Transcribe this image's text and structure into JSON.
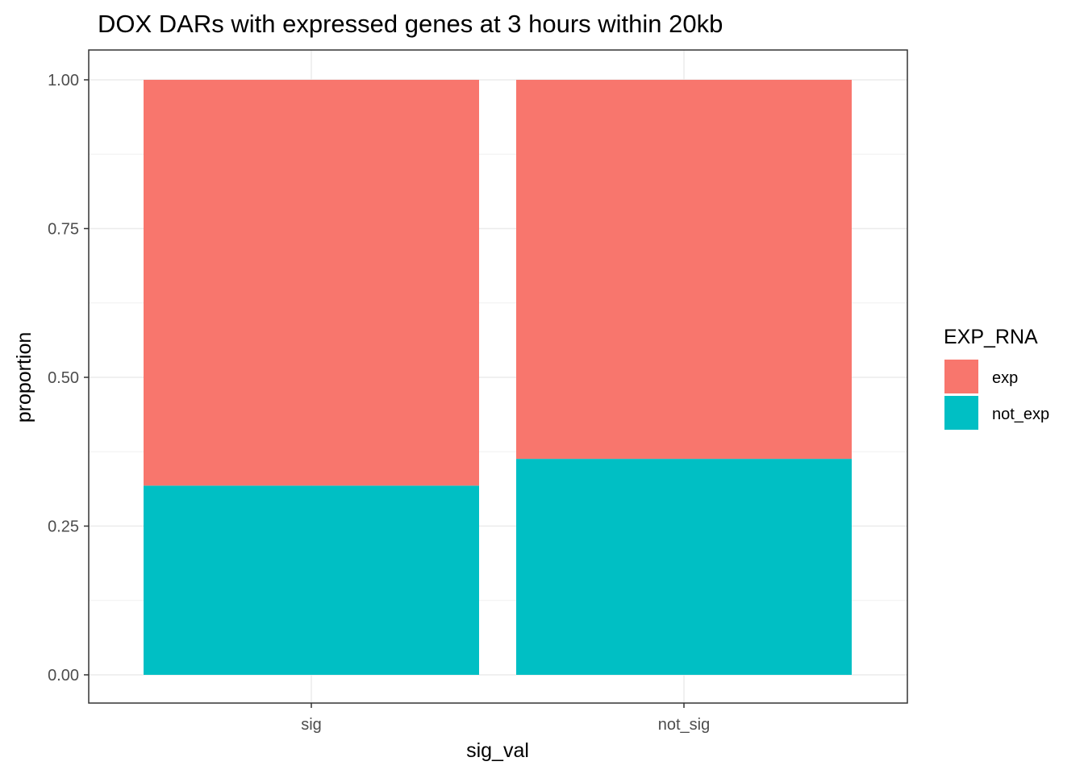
{
  "chart_data": {
    "type": "bar",
    "stacked": true,
    "title": "DOX DARs with expressed genes at 3 hours within 20kb",
    "xlabel": "sig_val",
    "ylabel": "proportion",
    "categories": [
      "sig",
      "not_sig"
    ],
    "ylim": [
      0,
      1
    ],
    "yticks": [
      0,
      0.25,
      0.5,
      0.75,
      1
    ],
    "ytick_labels": [
      "0.00",
      "0.25",
      "0.50",
      "0.75",
      "1.00"
    ],
    "grid": true,
    "legend": {
      "title": "EXP_RNA",
      "placement": "right",
      "entries": [
        "exp",
        "not_exp"
      ]
    },
    "series": [
      {
        "name": "not_exp",
        "color": "#00BFC4",
        "values": [
          0.318,
          0.363
        ]
      },
      {
        "name": "exp",
        "color": "#F8766D",
        "values": [
          0.682,
          0.637
        ]
      }
    ]
  }
}
